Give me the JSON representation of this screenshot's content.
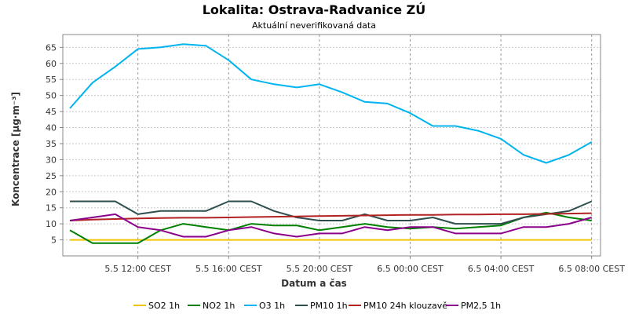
{
  "chart_data": {
    "type": "line",
    "title": "Lokalita: Ostrava-Radvanice ZÚ",
    "subtitle": "Aktuální neverifikovaná data",
    "xlabel": "Datum a čas",
    "ylabel": "Koncentrace [µg·m⁻³]",
    "x": [
      "5.5 09:00",
      "5.5 10:00",
      "5.5 11:00",
      "5.5 12:00",
      "5.5 13:00",
      "5.5 14:00",
      "5.5 15:00",
      "5.5 16:00",
      "5.5 17:00",
      "5.5 18:00",
      "5.5 19:00",
      "5.5 20:00",
      "5.5 21:00",
      "5.5 22:00",
      "5.5 23:00",
      "6.5 00:00",
      "6.5 01:00",
      "6.5 02:00",
      "6.5 03:00",
      "6.5 04:00",
      "6.5 05:00",
      "6.5 06:00",
      "6.5 07:00",
      "6.5 08:00"
    ],
    "x_tick_labels": [
      "5.5 12:00 CEST",
      "5.5 16:00 CEST",
      "5.5 20:00 CEST",
      "6.5 00:00 CEST",
      "6.5 04:00 CEST",
      "6.5 08:00 CEST"
    ],
    "x_tick_indices": [
      3,
      7,
      11,
      15,
      19,
      23
    ],
    "ylim": [
      0,
      69
    ],
    "yticks": [
      5,
      10,
      15,
      20,
      25,
      30,
      35,
      40,
      45,
      50,
      55,
      60,
      65
    ],
    "grid": true,
    "legend_position": "bottom",
    "series": [
      {
        "name": "SO2 1h",
        "color": "#f2c500",
        "values": [
          5,
          5,
          5,
          5,
          5,
          5,
          5,
          5,
          5,
          5,
          5,
          5,
          5,
          5,
          5,
          5,
          5,
          5,
          5,
          5,
          5,
          5,
          5,
          5
        ]
      },
      {
        "name": "NO2 1h",
        "color": "#008000",
        "values": [
          8,
          4,
          4,
          4,
          8,
          10,
          9,
          8,
          10,
          9.5,
          9.5,
          8,
          9,
          10,
          9,
          8.5,
          9,
          8.5,
          9,
          9.5,
          12,
          13.5,
          12,
          11
        ]
      },
      {
        "name": "O3 1h",
        "color": "#00b4f0",
        "values": [
          46,
          54,
          59,
          64.5,
          65,
          66,
          65.5,
          61,
          55,
          53.5,
          52.5,
          53.5,
          51,
          48,
          47.5,
          44.5,
          40.5,
          40.5,
          39,
          36.5,
          31.5,
          29,
          31.5,
          35.5
        ]
      },
      {
        "name": "PM10 1h",
        "color": "#2f4f4f",
        "values": [
          17,
          17,
          17,
          13,
          14,
          14,
          14,
          17,
          17,
          14,
          12,
          11,
          11,
          13,
          11,
          11,
          12,
          10,
          10,
          10,
          12,
          13,
          14,
          17
        ]
      },
      {
        "name": "PM10 24h klouzavě",
        "color": "#b22222",
        "values": [
          11,
          11.3,
          11.5,
          11.7,
          11.8,
          11.9,
          11.9,
          12,
          12.1,
          12.2,
          12.3,
          12.4,
          12.5,
          12.6,
          12.7,
          12.8,
          12.8,
          12.9,
          12.9,
          13,
          13,
          13.1,
          13.2,
          13.3
        ]
      },
      {
        "name": "PM2,5 1h",
        "color": "#8b008b",
        "values": [
          11,
          12,
          13,
          9,
          8,
          6,
          6,
          8,
          9,
          7,
          6,
          7,
          7,
          9,
          8,
          9,
          9,
          7,
          7,
          7,
          9,
          9,
          10,
          12
        ]
      }
    ]
  }
}
